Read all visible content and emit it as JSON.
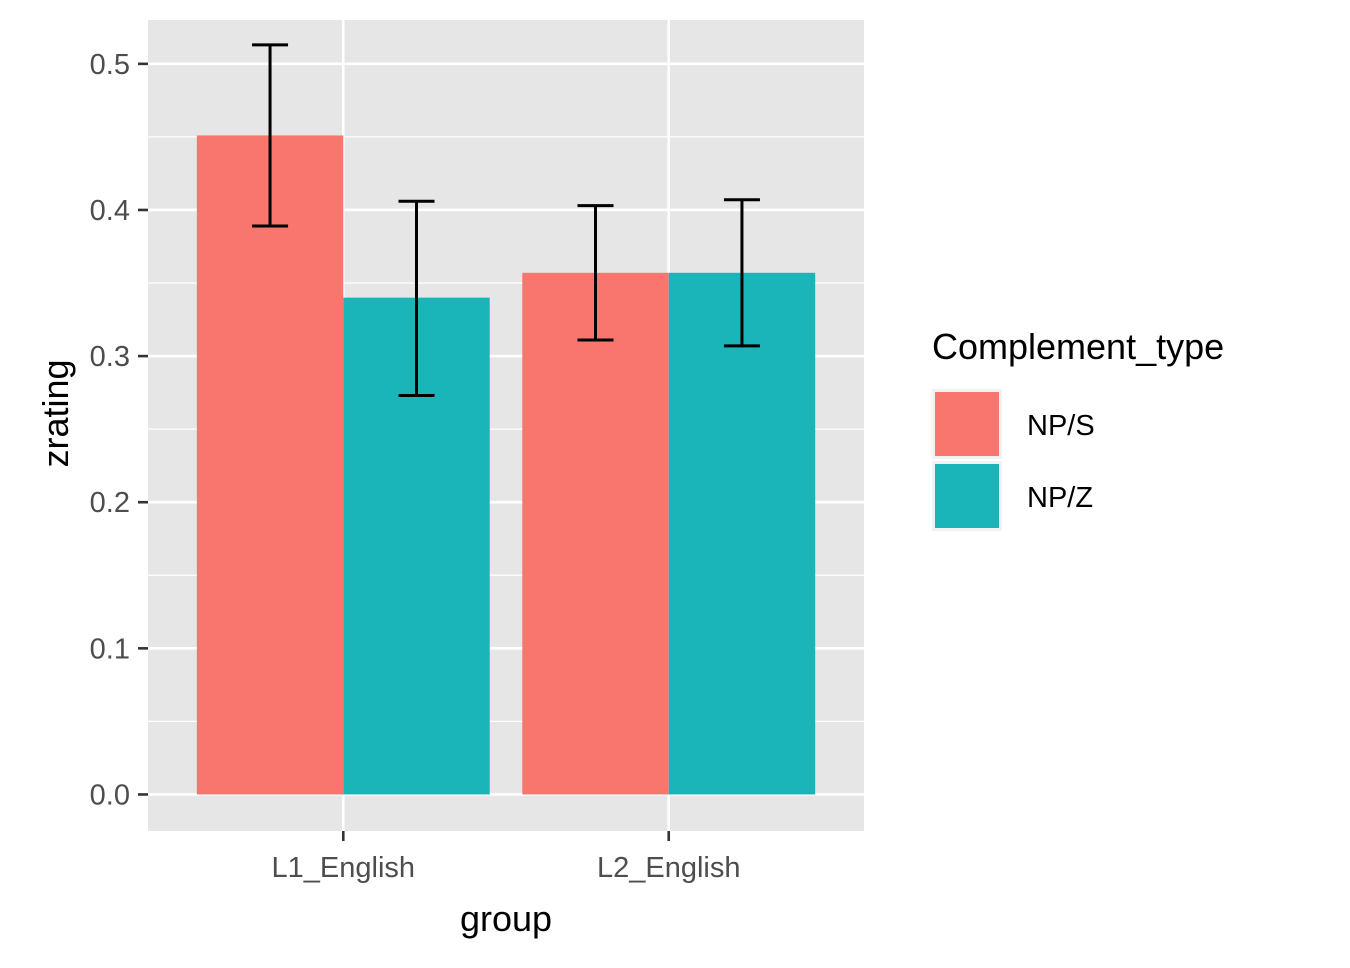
{
  "chart_data": {
    "type": "bar",
    "xlabel": "group",
    "ylabel": "zrating",
    "categories": [
      "L1_English",
      "L2_English"
    ],
    "ylim": [
      -0.025,
      0.53
    ],
    "yticks": [
      "0.0",
      "0.1",
      "0.2",
      "0.3",
      "0.4",
      "0.5"
    ],
    "grid": true,
    "legend_position": "right",
    "legend_title": "Complement_type",
    "series": [
      {
        "name": "NP/S",
        "color": "#F8766D",
        "values": [
          0.451,
          0.357
        ],
        "error_low": [
          0.389,
          0.311
        ],
        "error_high": [
          0.513,
          0.403
        ]
      },
      {
        "name": "NP/Z",
        "color": "#1AB5B8",
        "values": [
          0.34,
          0.357
        ],
        "error_low": [
          0.273,
          0.307
        ],
        "error_high": [
          0.406,
          0.407
        ]
      }
    ],
    "panel_background": "#E6E6E6",
    "grid_color": "#FFFFFF"
  }
}
